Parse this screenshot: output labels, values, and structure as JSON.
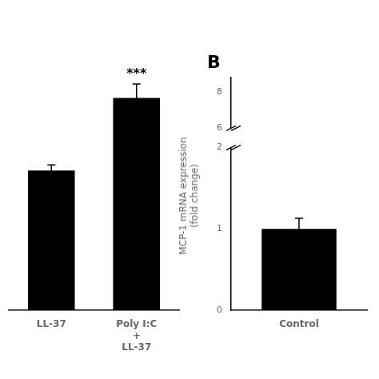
{
  "chart_data": [
    {
      "type": "bar",
      "categories": [
        "LL-37",
        "Poly I:C\n+\nLL-37"
      ],
      "values": [
        1.0,
        1.52
      ],
      "errors": [
        0.04,
        0.1
      ],
      "color": "#000000",
      "ylim": [
        0,
        1.9
      ],
      "tick_labels": "x",
      "grid": false,
      "annotations": [
        {
          "text": "***",
          "category": "Poly I:C\n+\nLL-37"
        }
      ]
    },
    {
      "type": "bar",
      "categories": [
        "Control"
      ],
      "values": [
        1.0
      ],
      "errors": [
        0.13
      ],
      "color": "#000000",
      "ylabel": "MCP-1 mRNA expression\n(fold change)",
      "ylim": [
        0,
        2.0
      ],
      "yticks": [
        0,
        1,
        2
      ],
      "grid": false
    },
    {
      "type": "bar",
      "title": "B",
      "ylim": [
        6,
        8.8
      ],
      "yticks": [
        6,
        8
      ],
      "tick_labels": "y",
      "grid": false
    }
  ]
}
